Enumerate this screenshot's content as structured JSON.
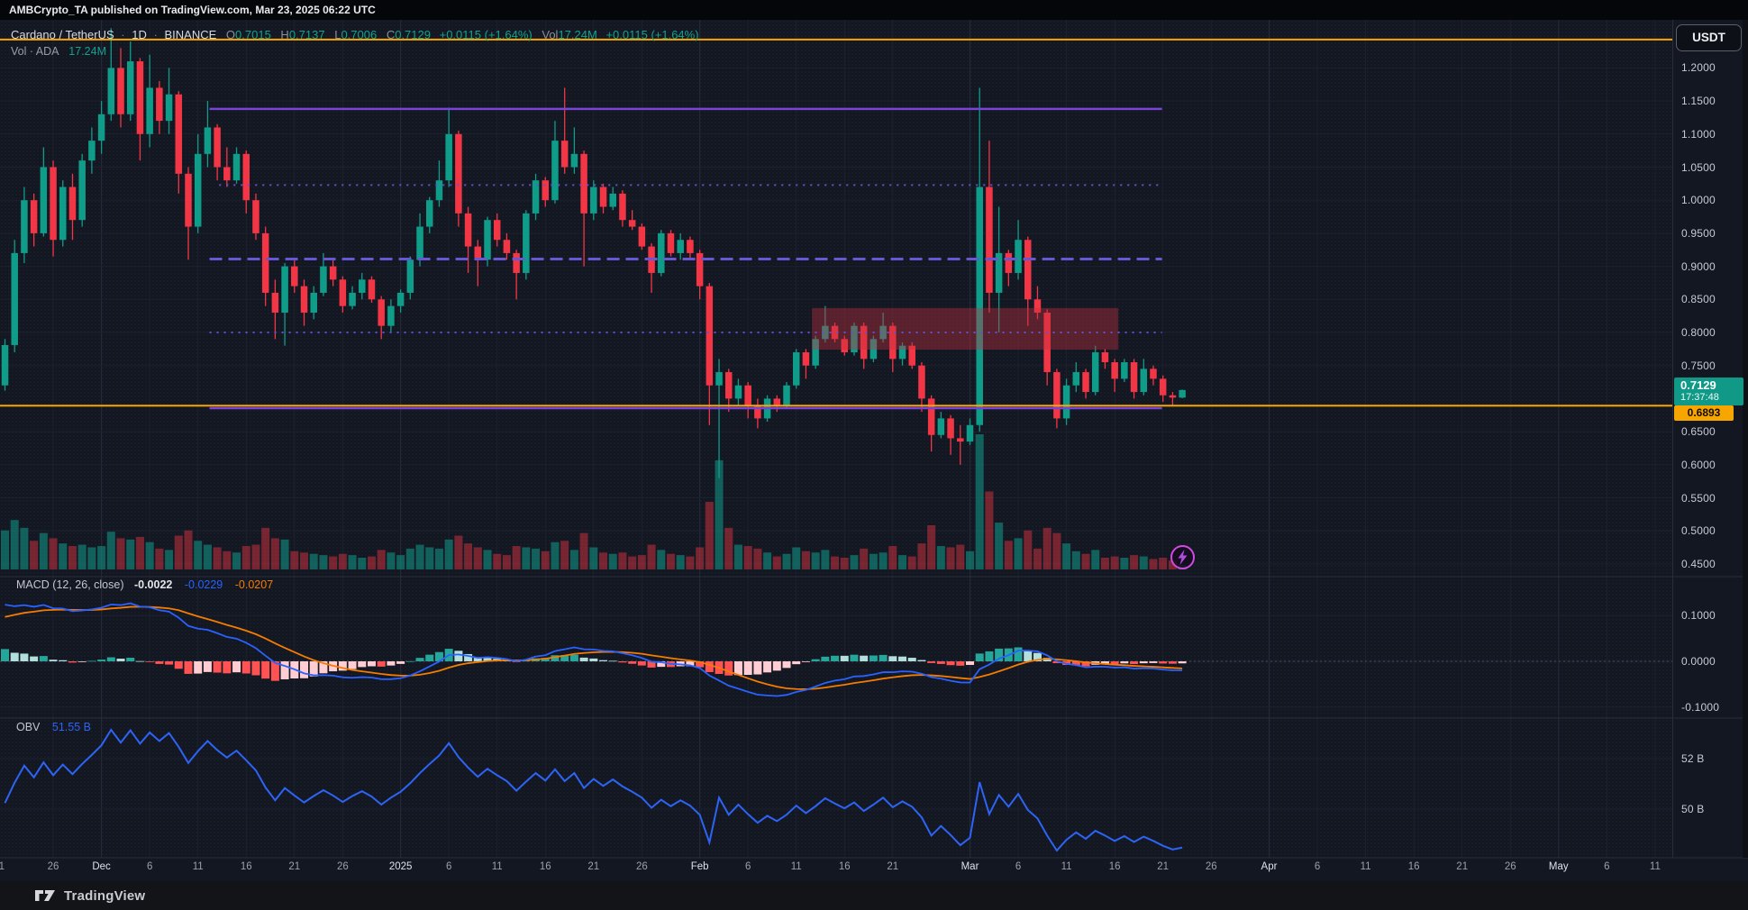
{
  "top_bar": {
    "title": "AMBCrypto_TA published on TradingView.com, Mar 23, 2025 06:22 UTC"
  },
  "legend": {
    "symbol": "Cardano / TetherUS",
    "sep": "·",
    "interval": "1D",
    "exchange": "BINANCE",
    "o_label": "O",
    "o": "0.7015",
    "h_label": "H",
    "h": "0.7137",
    "l_label": "L",
    "l": "0.7006",
    "c_label": "C",
    "c": "0.7129",
    "change": "+0.0115 (+1.64%)",
    "vol_label": "Vol",
    "vol_value": "17.24M",
    "vol_change": "+0.0115 (+1.64%)",
    "vol_row_label": "Vol · ADA",
    "vol_row_value": "17.24M"
  },
  "price_axis": {
    "currency": "USDT",
    "ticks": [
      {
        "label": "1.2000",
        "price": 1.2
      },
      {
        "label": "1.1500",
        "price": 1.15
      },
      {
        "label": "1.1000",
        "price": 1.1
      },
      {
        "label": "1.0500",
        "price": 1.05
      },
      {
        "label": "1.0000",
        "price": 1.0
      },
      {
        "label": "0.9500",
        "price": 0.95
      },
      {
        "label": "0.9000",
        "price": 0.9
      },
      {
        "label": "0.8500",
        "price": 0.85
      },
      {
        "label": "0.8000",
        "price": 0.8
      },
      {
        "label": "0.7500",
        "price": 0.75
      },
      {
        "label": "0.6500",
        "price": 0.65
      },
      {
        "label": "0.6000",
        "price": 0.6
      },
      {
        "label": "0.5500",
        "price": 0.55
      },
      {
        "label": "0.5000",
        "price": 0.5
      },
      {
        "label": "0.4500",
        "price": 0.45
      }
    ]
  },
  "badges": {
    "last_price": "0.7129",
    "countdown": "17:37:48",
    "alert_price": "0.6893"
  },
  "macd_panel": {
    "title": "MACD (12, 26, close)",
    "hist_value": "-0.0022",
    "macd_value": "-0.0229",
    "signal_value": "-0.0207",
    "ticks": [
      {
        "label": "0.1000",
        "v": 0.1
      },
      {
        "label": "0.0000",
        "v": 0.0
      },
      {
        "label": "-0.1000",
        "v": -0.1
      }
    ]
  },
  "obv_panel": {
    "title": "OBV",
    "value": "51.55 B",
    "ticks": [
      {
        "label": "52 B"
      },
      {
        "label": "50 B"
      }
    ]
  },
  "footer": {
    "brand": "TradingView"
  },
  "chart_data": {
    "type": "candlestick",
    "title": "Cardano / TetherUS 1D BINANCE with Volume, MACD(12,26,9), OBV",
    "ylabel": "Price (USDT)",
    "ylim": [
      0.44,
      1.27
    ],
    "legend_position": "top-left",
    "grid": true,
    "columns": [
      "date",
      "open",
      "high",
      "low",
      "close",
      "volume_m"
    ],
    "candles": [
      [
        "Nov 21",
        0.72,
        0.79,
        0.712,
        0.781,
        150
      ],
      [
        "Nov 22",
        0.781,
        0.94,
        0.77,
        0.92,
        190
      ],
      [
        "Nov 23",
        0.92,
        1.02,
        0.905,
        1.0,
        160
      ],
      [
        "Nov 24",
        1.0,
        1.01,
        0.93,
        0.95,
        110
      ],
      [
        "Nov 25",
        0.95,
        1.08,
        0.945,
        1.05,
        140
      ],
      [
        "Nov 26",
        1.05,
        1.06,
        0.915,
        0.94,
        120
      ],
      [
        "Nov 27",
        0.94,
        1.03,
        0.93,
        1.02,
        100
      ],
      [
        "Nov 28",
        1.02,
        1.04,
        0.94,
        0.97,
        90
      ],
      [
        "Nov 29",
        0.97,
        1.07,
        0.96,
        1.06,
        95
      ],
      [
        "Nov 30",
        1.06,
        1.11,
        1.04,
        1.09,
        85
      ],
      [
        "Dec 1",
        1.09,
        1.15,
        1.07,
        1.13,
        90
      ],
      [
        "Dec 2",
        1.13,
        1.26,
        1.12,
        1.2,
        145
      ],
      [
        "Dec 3",
        1.2,
        1.23,
        1.11,
        1.13,
        120
      ],
      [
        "Dec 4",
        1.13,
        1.24,
        1.12,
        1.21,
        115
      ],
      [
        "Dec 5",
        1.21,
        1.215,
        1.06,
        1.1,
        125
      ],
      [
        "Dec 6",
        1.1,
        1.22,
        1.08,
        1.17,
        105
      ],
      [
        "Dec 7",
        1.17,
        1.18,
        1.1,
        1.12,
        80
      ],
      [
        "Dec 8",
        1.12,
        1.2,
        1.1,
        1.16,
        75
      ],
      [
        "Dec 9",
        1.16,
        1.165,
        1.01,
        1.04,
        130
      ],
      [
        "Dec 10",
        1.04,
        1.05,
        0.91,
        0.96,
        150
      ],
      [
        "Dec 11",
        0.96,
        1.1,
        0.95,
        1.07,
        110
      ],
      [
        "Dec 12",
        1.07,
        1.15,
        1.05,
        1.11,
        95
      ],
      [
        "Dec 13",
        1.11,
        1.115,
        1.03,
        1.05,
        85
      ],
      [
        "Dec 14",
        1.05,
        1.08,
        1.02,
        1.03,
        70
      ],
      [
        "Dec 15",
        1.03,
        1.08,
        1.025,
        1.07,
        65
      ],
      [
        "Dec 16",
        1.07,
        1.075,
        0.98,
        1.0,
        90
      ],
      [
        "Dec 17",
        1.0,
        1.01,
        0.94,
        0.95,
        95
      ],
      [
        "Dec 18",
        0.95,
        0.96,
        0.84,
        0.86,
        160
      ],
      [
        "Dec 19",
        0.86,
        0.88,
        0.79,
        0.83,
        120
      ],
      [
        "Dec 20",
        0.83,
        0.905,
        0.78,
        0.9,
        115
      ],
      [
        "Dec 21",
        0.9,
        0.91,
        0.86,
        0.87,
        70
      ],
      [
        "Dec 22",
        0.87,
        0.88,
        0.81,
        0.83,
        65
      ],
      [
        "Dec 23",
        0.83,
        0.87,
        0.82,
        0.86,
        60
      ],
      [
        "Dec 24",
        0.86,
        0.92,
        0.855,
        0.9,
        55
      ],
      [
        "Dec 25",
        0.9,
        0.91,
        0.87,
        0.88,
        50
      ],
      [
        "Dec 26",
        0.88,
        0.885,
        0.83,
        0.84,
        60
      ],
      [
        "Dec 27",
        0.84,
        0.87,
        0.835,
        0.86,
        55
      ],
      [
        "Dec 28",
        0.86,
        0.89,
        0.85,
        0.88,
        45
      ],
      [
        "Dec 29",
        0.88,
        0.885,
        0.845,
        0.85,
        50
      ],
      [
        "Dec 30",
        0.85,
        0.855,
        0.79,
        0.81,
        75
      ],
      [
        "Dec 31",
        0.81,
        0.85,
        0.8,
        0.84,
        65
      ],
      [
        "Jan 1",
        0.84,
        0.865,
        0.83,
        0.86,
        55
      ],
      [
        "Jan 2",
        0.86,
        0.915,
        0.85,
        0.91,
        80
      ],
      [
        "Jan 3",
        0.91,
        0.98,
        0.9,
        0.96,
        95
      ],
      [
        "Jan 4",
        0.96,
        1.005,
        0.95,
        1.0,
        85
      ],
      [
        "Jan 5",
        1.0,
        1.06,
        0.99,
        1.03,
        80
      ],
      [
        "Jan 6",
        1.03,
        1.14,
        1.02,
        1.1,
        115
      ],
      [
        "Jan 7",
        1.1,
        1.105,
        0.96,
        0.98,
        130
      ],
      [
        "Jan 8",
        0.98,
        0.99,
        0.89,
        0.93,
        100
      ],
      [
        "Jan 9",
        0.93,
        0.94,
        0.87,
        0.91,
        85
      ],
      [
        "Jan 10",
        0.91,
        0.975,
        0.9,
        0.97,
        75
      ],
      [
        "Jan 11",
        0.97,
        0.98,
        0.93,
        0.94,
        60
      ],
      [
        "Jan 12",
        0.94,
        0.95,
        0.91,
        0.92,
        55
      ],
      [
        "Jan 13",
        0.92,
        0.925,
        0.85,
        0.89,
        90
      ],
      [
        "Jan 14",
        0.89,
        0.985,
        0.88,
        0.98,
        85
      ],
      [
        "Jan 15",
        0.98,
        1.04,
        0.97,
        1.03,
        80
      ],
      [
        "Jan 16",
        1.03,
        1.035,
        0.99,
        1.0,
        70
      ],
      [
        "Jan 17",
        1.0,
        1.12,
        0.995,
        1.09,
        105
      ],
      [
        "Jan 18",
        1.09,
        1.17,
        1.04,
        1.05,
        110
      ],
      [
        "Jan 19",
        1.05,
        1.11,
        1.04,
        1.07,
        75
      ],
      [
        "Jan 20",
        1.07,
        1.075,
        0.9,
        0.98,
        140
      ],
      [
        "Jan 21",
        0.98,
        1.03,
        0.97,
        1.02,
        85
      ],
      [
        "Jan 22",
        1.02,
        1.025,
        0.98,
        0.99,
        65
      ],
      [
        "Jan 23",
        0.99,
        1.02,
        0.985,
        1.01,
        60
      ],
      [
        "Jan 24",
        1.01,
        1.015,
        0.96,
        0.97,
        65
      ],
      [
        "Jan 25",
        0.97,
        0.985,
        0.955,
        0.96,
        50
      ],
      [
        "Jan 26",
        0.96,
        0.965,
        0.925,
        0.93,
        55
      ],
      [
        "Jan 27",
        0.93,
        0.935,
        0.86,
        0.89,
        95
      ],
      [
        "Jan 28",
        0.89,
        0.955,
        0.885,
        0.95,
        75
      ],
      [
        "Jan 29",
        0.95,
        0.955,
        0.915,
        0.92,
        60
      ],
      [
        "Jan 30",
        0.92,
        0.95,
        0.91,
        0.94,
        55
      ],
      [
        "Jan 31",
        0.94,
        0.945,
        0.91,
        0.92,
        50
      ],
      [
        "Feb 1",
        0.92,
        0.925,
        0.85,
        0.87,
        85
      ],
      [
        "Feb 2",
        0.87,
        0.875,
        0.66,
        0.72,
        260
      ],
      [
        "Feb 3",
        0.72,
        0.76,
        0.58,
        0.74,
        420
      ],
      [
        "Feb 4",
        0.74,
        0.745,
        0.68,
        0.7,
        160
      ],
      [
        "Feb 5",
        0.7,
        0.73,
        0.69,
        0.72,
        95
      ],
      [
        "Feb 6",
        0.72,
        0.725,
        0.67,
        0.69,
        90
      ],
      [
        "Feb 7",
        0.69,
        0.7,
        0.655,
        0.67,
        80
      ],
      [
        "Feb 8",
        0.67,
        0.705,
        0.665,
        0.7,
        65
      ],
      [
        "Feb 9",
        0.7,
        0.705,
        0.68,
        0.69,
        50
      ],
      [
        "Feb 10",
        0.69,
        0.725,
        0.685,
        0.72,
        60
      ],
      [
        "Feb 11",
        0.72,
        0.775,
        0.715,
        0.77,
        85
      ],
      [
        "Feb 12",
        0.77,
        0.775,
        0.73,
        0.75,
        70
      ],
      [
        "Feb 13",
        0.75,
        0.795,
        0.745,
        0.79,
        65
      ],
      [
        "Feb 14",
        0.79,
        0.84,
        0.785,
        0.81,
        75
      ],
      [
        "Feb 15",
        0.81,
        0.815,
        0.785,
        0.79,
        50
      ],
      [
        "Feb 16",
        0.79,
        0.795,
        0.765,
        0.77,
        45
      ],
      [
        "Feb 17",
        0.77,
        0.815,
        0.765,
        0.81,
        55
      ],
      [
        "Feb 18",
        0.81,
        0.815,
        0.745,
        0.76,
        80
      ],
      [
        "Feb 19",
        0.76,
        0.795,
        0.755,
        0.79,
        60
      ],
      [
        "Feb 20",
        0.79,
        0.83,
        0.785,
        0.81,
        65
      ],
      [
        "Feb 21",
        0.81,
        0.815,
        0.74,
        0.76,
        90
      ],
      [
        "Feb 22",
        0.76,
        0.785,
        0.75,
        0.78,
        55
      ],
      [
        "Feb 23",
        0.78,
        0.785,
        0.745,
        0.75,
        50
      ],
      [
        "Feb 24",
        0.75,
        0.755,
        0.68,
        0.7,
        100
      ],
      [
        "Feb 25",
        0.7,
        0.705,
        0.62,
        0.645,
        170
      ],
      [
        "Feb 26",
        0.645,
        0.68,
        0.64,
        0.67,
        90
      ],
      [
        "Feb 27",
        0.67,
        0.675,
        0.615,
        0.64,
        85
      ],
      [
        "Feb 28",
        0.64,
        0.66,
        0.6,
        0.635,
        95
      ],
      [
        "Mar 1",
        0.635,
        0.67,
        0.63,
        0.66,
        70
      ],
      [
        "Mar 2",
        0.66,
        1.17,
        0.65,
        1.02,
        520
      ],
      [
        "Mar 3",
        1.02,
        1.09,
        0.83,
        0.86,
        300
      ],
      [
        "Mar 4",
        0.86,
        0.99,
        0.8,
        0.92,
        180
      ],
      [
        "Mar 5",
        0.92,
        0.925,
        0.87,
        0.89,
        110
      ],
      [
        "Mar 6",
        0.89,
        0.97,
        0.88,
        0.94,
        120
      ],
      [
        "Mar 7",
        0.94,
        0.945,
        0.81,
        0.85,
        150
      ],
      [
        "Mar 8",
        0.85,
        0.87,
        0.82,
        0.83,
        80
      ],
      [
        "Mar 9",
        0.83,
        0.835,
        0.72,
        0.74,
        160
      ],
      [
        "Mar 10",
        0.74,
        0.745,
        0.655,
        0.67,
        140
      ],
      [
        "Mar 11",
        0.67,
        0.73,
        0.66,
        0.72,
        100
      ],
      [
        "Mar 12",
        0.72,
        0.755,
        0.71,
        0.74,
        70
      ],
      [
        "Mar 13",
        0.74,
        0.745,
        0.7,
        0.71,
        60
      ],
      [
        "Mar 14",
        0.71,
        0.78,
        0.705,
        0.77,
        75
      ],
      [
        "Mar 15",
        0.77,
        0.775,
        0.745,
        0.755,
        45
      ],
      [
        "Mar 16",
        0.755,
        0.76,
        0.71,
        0.73,
        50
      ],
      [
        "Mar 17",
        0.73,
        0.76,
        0.725,
        0.755,
        45
      ],
      [
        "Mar 18",
        0.755,
        0.76,
        0.7,
        0.71,
        55
      ],
      [
        "Mar 19",
        0.71,
        0.76,
        0.705,
        0.745,
        50
      ],
      [
        "Mar 20",
        0.745,
        0.75,
        0.72,
        0.73,
        40
      ],
      [
        "Mar 21",
        0.73,
        0.735,
        0.695,
        0.705,
        45
      ],
      [
        "Mar 22",
        0.705,
        0.71,
        0.69,
        0.7015,
        35
      ],
      [
        "Mar 23",
        0.7015,
        0.7137,
        0.7006,
        0.7129,
        17.24
      ]
    ],
    "levels": [
      {
        "price": 1.243,
        "color": "#f7a600",
        "style": "solid",
        "full_width": true,
        "width": 2
      },
      {
        "price": 0.6893,
        "color": "#f7a600",
        "style": "solid",
        "full_width": true,
        "width": 2
      },
      {
        "price": 1.138,
        "color": "#7a45d6",
        "style": "solid",
        "d1": 21.2,
        "d2": 119.9,
        "width": 2.5
      },
      {
        "price": 1.023,
        "color": "#6450d0",
        "style": "dotted",
        "d1": 22.2,
        "d2": 119.9,
        "width": 2
      },
      {
        "price": 0.911,
        "color": "#6757d2",
        "style": "dashed",
        "d1": 21.2,
        "d2": 119.9,
        "width": 3
      },
      {
        "price": 0.8,
        "color": "#6450d0",
        "style": "dotted",
        "d1": 21.2,
        "d2": 119.9,
        "width": 2
      },
      {
        "price": 0.6855,
        "color": "#7a45d6",
        "style": "solid",
        "d1": 21.2,
        "d2": 119.9,
        "width": 2.5
      }
    ],
    "zone": {
      "d1": 84,
      "d2": 115,
      "price_top": 0.837,
      "price_bottom": 0.774,
      "fill": "rgba(196,48,62,0.40)"
    },
    "macd": {
      "fast": 12,
      "slow": 26,
      "signal": 9,
      "colors": {
        "hist_up": "#26a69a",
        "hist_up_fade": "#b2dfdb",
        "hist_down": "#ff5252",
        "hist_down_fade": "#ffcdd2",
        "macd_line": "#2962ff",
        "signal_line": "#f57c00"
      }
    },
    "obv": {
      "line_color": "#2d64f5"
    },
    "colors": {
      "up": "#0f9d8a",
      "down": "#f23645",
      "vol_up": "rgba(16,157,138,0.55)",
      "vol_down": "rgba(242,54,69,0.45)",
      "grid": "#1d212d",
      "grid_major": "#262b3b",
      "divider": "#2a2e39",
      "background": "#131722"
    },
    "time_axis": [
      {
        "label": "1",
        "d": -0.35
      },
      {
        "label": "26",
        "d": 5
      },
      {
        "label": "Dec",
        "d": 10,
        "major": true
      },
      {
        "label": "6",
        "d": 15
      },
      {
        "label": "11",
        "d": 20
      },
      {
        "label": "16",
        "d": 25
      },
      {
        "label": "21",
        "d": 30
      },
      {
        "label": "26",
        "d": 35
      },
      {
        "label": "2025",
        "d": 41,
        "major": true
      },
      {
        "label": "6",
        "d": 46
      },
      {
        "label": "11",
        "d": 51
      },
      {
        "label": "16",
        "d": 56
      },
      {
        "label": "21",
        "d": 61
      },
      {
        "label": "26",
        "d": 66
      },
      {
        "label": "Feb",
        "d": 72,
        "major": true
      },
      {
        "label": "6",
        "d": 77
      },
      {
        "label": "11",
        "d": 82
      },
      {
        "label": "16",
        "d": 87
      },
      {
        "label": "21",
        "d": 92
      },
      {
        "label": "Mar",
        "d": 100,
        "major": true
      },
      {
        "label": "6",
        "d": 105
      },
      {
        "label": "11",
        "d": 110
      },
      {
        "label": "16",
        "d": 115
      },
      {
        "label": "21",
        "d": 120
      },
      {
        "label": "26",
        "d": 125
      },
      {
        "label": "Apr",
        "d": 131,
        "major": true
      },
      {
        "label": "6",
        "d": 136
      },
      {
        "label": "11",
        "d": 141
      },
      {
        "label": "16",
        "d": 146
      },
      {
        "label": "21",
        "d": 151
      },
      {
        "label": "26",
        "d": 156
      },
      {
        "label": "May",
        "d": 161,
        "major": true
      },
      {
        "label": "6",
        "d": 166
      },
      {
        "label": "11",
        "d": 171
      }
    ]
  }
}
